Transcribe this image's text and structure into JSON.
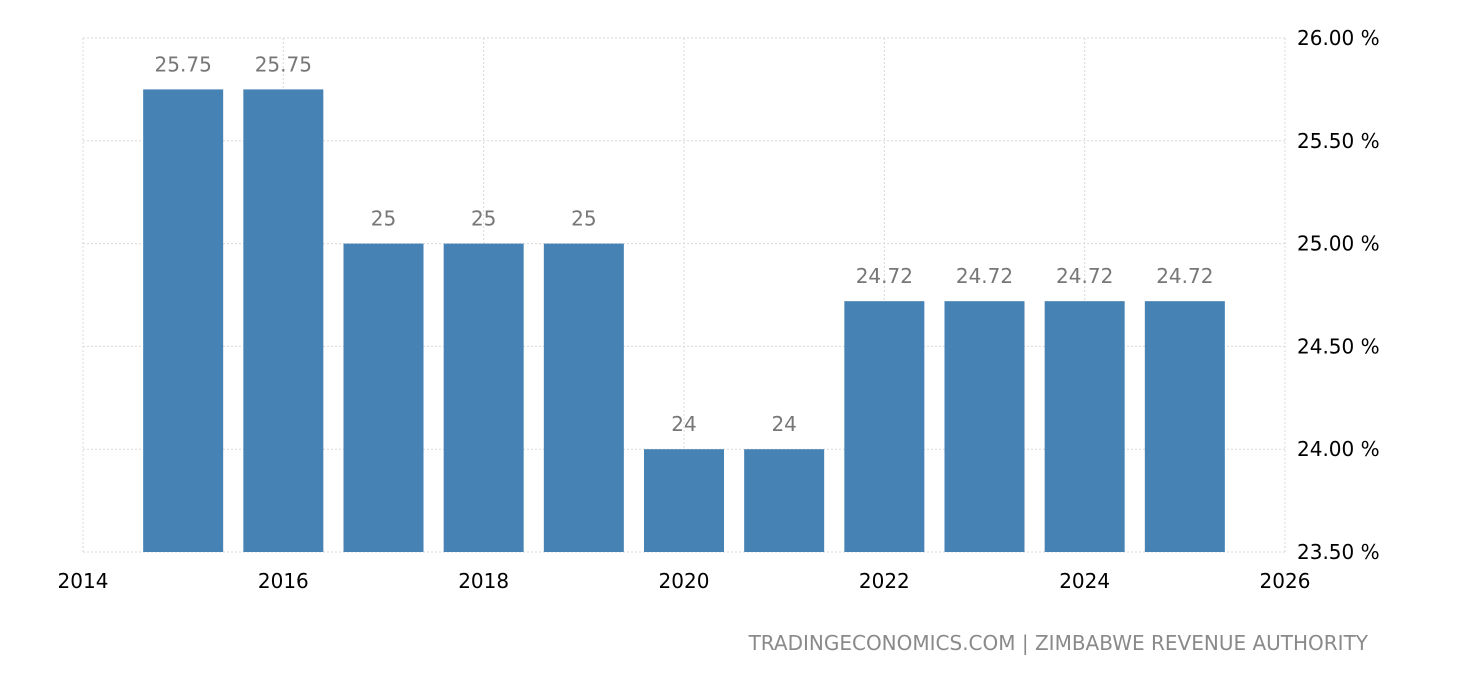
{
  "chart_data": {
    "type": "bar",
    "x": [
      2015,
      2016,
      2017,
      2018,
      2019,
      2020,
      2021,
      2022,
      2023,
      2024,
      2025
    ],
    "values": [
      25.75,
      25.75,
      25,
      25,
      25,
      24,
      24,
      24.72,
      24.72,
      24.72,
      24.72
    ],
    "value_labels": [
      "25.75",
      "25.75",
      "25",
      "25",
      "25",
      "24",
      "24",
      "24.72",
      "24.72",
      "24.72",
      "24.72"
    ],
    "xlim": [
      2014,
      2026
    ],
    "x_ticks": [
      "2014",
      "2016",
      "2018",
      "2020",
      "2022",
      "2024",
      "2026"
    ],
    "ylim": [
      23.5,
      26.0
    ],
    "y_ticks": [
      "23.50 %",
      "24.00 %",
      "24.50 %",
      "25.00 %",
      "25.50 %",
      "26.00 %"
    ],
    "y_axis_position": "right",
    "grid": true,
    "bar_color": "#4682b4",
    "title": "",
    "xlabel": "",
    "ylabel": ""
  },
  "footer": {
    "source": "TRADINGECONOMICS.COM | ZIMBABWE REVENUE AUTHORITY"
  }
}
